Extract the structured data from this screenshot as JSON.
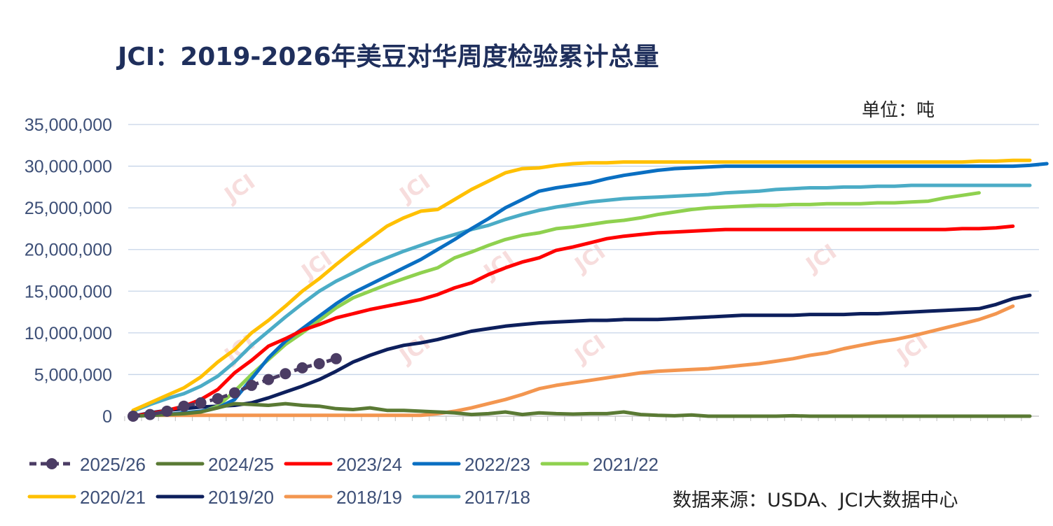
{
  "title": "JCI：2019-2026年美豆对华周度检验累计总量",
  "unit": "单位：吨",
  "source": "数据来源：USDA、JCI大数据中心",
  "watermark": "JCI",
  "chart_data": {
    "type": "line",
    "ylim": [
      0,
      35000000
    ],
    "yticks": [
      0,
      5000000,
      10000000,
      15000000,
      20000000,
      25000000,
      30000000,
      35000000
    ],
    "ytick_labels": [
      "0",
      "5,000,000",
      "10,000,000",
      "15,000,000",
      "20,000,000",
      "25,000,000",
      "30,000,000",
      "35,000,000"
    ],
    "week_count": 54,
    "grid": true,
    "legend_position": "bottom",
    "series": [
      {
        "name": "2025/26",
        "color": "#4b3c64",
        "style": "dash-marker",
        "values": [
          0,
          200000,
          600000,
          1200000,
          1600000,
          2100000,
          2800000,
          3700000,
          4400000,
          5100000,
          5800000,
          6300000,
          6900000
        ]
      },
      {
        "name": "2024/25",
        "color": "#5a7a34",
        "style": "solid",
        "values": [
          0,
          100000,
          200000,
          300000,
          500000,
          1000000,
          1500000,
          1400000,
          1300000,
          1500000,
          1300000,
          1200000,
          900000,
          800000,
          1000000,
          700000,
          700000,
          600000,
          500000,
          400000,
          200000,
          300000,
          500000,
          200000,
          400000,
          300000,
          250000,
          300000,
          300000,
          500000,
          200000,
          100000,
          50000,
          150000,
          0,
          0,
          0,
          0,
          0,
          50000,
          0,
          0,
          0,
          0,
          0,
          0,
          0,
          0,
          0,
          0,
          0,
          0,
          0,
          0
        ]
      },
      {
        "name": "2023/24",
        "color": "#ff0000",
        "style": "solid",
        "values": [
          0,
          300000,
          700000,
          1200000,
          2000000,
          3200000,
          5200000,
          6700000,
          8400000,
          9300000,
          10300000,
          11000000,
          11800000,
          12300000,
          12800000,
          13200000,
          13600000,
          14000000,
          14600000,
          15400000,
          16000000,
          17000000,
          17800000,
          18500000,
          19000000,
          19900000,
          20300000,
          20800000,
          21300000,
          21600000,
          21800000,
          22000000,
          22100000,
          22200000,
          22300000,
          22400000,
          22400000,
          22400000,
          22400000,
          22400000,
          22400000,
          22400000,
          22400000,
          22400000,
          22400000,
          22400000,
          22400000,
          22400000,
          22400000,
          22500000,
          22500000,
          22600000,
          22800000
        ]
      },
      {
        "name": "2022/23",
        "color": "#0a6fc2",
        "style": "solid",
        "values": [
          0,
          100000,
          200000,
          400000,
          600000,
          1000000,
          2000000,
          4500000,
          7000000,
          9000000,
          10500000,
          12000000,
          13500000,
          14800000,
          15800000,
          16800000,
          17800000,
          18800000,
          20000000,
          21200000,
          22500000,
          23700000,
          25000000,
          26000000,
          27000000,
          27400000,
          27700000,
          28000000,
          28500000,
          28900000,
          29200000,
          29500000,
          29700000,
          29800000,
          29900000,
          30000000,
          30000000,
          30000000,
          30000000,
          30000000,
          30000000,
          30000000,
          30000000,
          30000000,
          30000000,
          30000000,
          30000000,
          30000000,
          30000000,
          30000000,
          30000000,
          30000000,
          30000000,
          30100000,
          30300000
        ]
      },
      {
        "name": "2021/22",
        "color": "#8fd14f",
        "style": "solid",
        "values": [
          0,
          100000,
          200000,
          300000,
          500000,
          1200000,
          3000000,
          5000000,
          6800000,
          8600000,
          10000000,
          11500000,
          13000000,
          14200000,
          15000000,
          15800000,
          16500000,
          17200000,
          17800000,
          19000000,
          19700000,
          20500000,
          21200000,
          21700000,
          22000000,
          22500000,
          22700000,
          23000000,
          23300000,
          23500000,
          23800000,
          24200000,
          24500000,
          24800000,
          25000000,
          25100000,
          25200000,
          25300000,
          25300000,
          25400000,
          25400000,
          25500000,
          25500000,
          25500000,
          25600000,
          25600000,
          25700000,
          25800000,
          26200000,
          26500000,
          26800000
        ]
      },
      {
        "name": "2020/21",
        "color": "#ffc000",
        "style": "solid",
        "values": [
          700000,
          1600000,
          2500000,
          3400000,
          4700000,
          6500000,
          8000000,
          10000000,
          11500000,
          13200000,
          15000000,
          16500000,
          18200000,
          19800000,
          21300000,
          22800000,
          23800000,
          24600000,
          24800000,
          26000000,
          27200000,
          28200000,
          29200000,
          29700000,
          29800000,
          30100000,
          30300000,
          30400000,
          30400000,
          30500000,
          30500000,
          30500000,
          30500000,
          30500000,
          30500000,
          30500000,
          30500000,
          30500000,
          30500000,
          30500000,
          30500000,
          30500000,
          30500000,
          30500000,
          30500000,
          30500000,
          30500000,
          30500000,
          30500000,
          30500000,
          30600000,
          30600000,
          30700000,
          30700000
        ]
      },
      {
        "name": "2019/20",
        "color": "#0d1f5c",
        "style": "solid",
        "values": [
          0,
          400000,
          700000,
          900000,
          1100000,
          1200000,
          1300000,
          1600000,
          2200000,
          2900000,
          3600000,
          4400000,
          5400000,
          6500000,
          7300000,
          8000000,
          8500000,
          8800000,
          9200000,
          9700000,
          10200000,
          10500000,
          10800000,
          11000000,
          11200000,
          11300000,
          11400000,
          11500000,
          11500000,
          11600000,
          11600000,
          11600000,
          11700000,
          11800000,
          11900000,
          12000000,
          12100000,
          12100000,
          12100000,
          12100000,
          12200000,
          12200000,
          12200000,
          12300000,
          12300000,
          12400000,
          12500000,
          12600000,
          12700000,
          12800000,
          12900000,
          13400000,
          14100000,
          14500000
        ]
      },
      {
        "name": "2018/19",
        "color": "#f39650",
        "style": "solid",
        "values": [
          100000,
          100000,
          100000,
          100000,
          100000,
          100000,
          100000,
          100000,
          100000,
          100000,
          100000,
          100000,
          100000,
          100000,
          100000,
          100000,
          100000,
          100000,
          300000,
          600000,
          1000000,
          1500000,
          2000000,
          2600000,
          3300000,
          3700000,
          4000000,
          4300000,
          4600000,
          4900000,
          5200000,
          5400000,
          5500000,
          5600000,
          5700000,
          5900000,
          6100000,
          6300000,
          6600000,
          6900000,
          7300000,
          7600000,
          8100000,
          8500000,
          8900000,
          9200000,
          9600000,
          10100000,
          10600000,
          11100000,
          11600000,
          12300000,
          13200000
        ]
      },
      {
        "name": "2017/18",
        "color": "#4bacc6",
        "style": "solid",
        "values": [
          600000,
          1400000,
          2100000,
          2700000,
          3600000,
          4800000,
          6500000,
          8500000,
          10200000,
          11900000,
          13500000,
          15000000,
          16200000,
          17200000,
          18200000,
          19000000,
          19800000,
          20500000,
          21200000,
          21800000,
          22400000,
          22900000,
          23600000,
          24200000,
          24700000,
          25100000,
          25400000,
          25700000,
          25900000,
          26100000,
          26200000,
          26300000,
          26400000,
          26500000,
          26600000,
          26800000,
          26900000,
          27000000,
          27200000,
          27300000,
          27400000,
          27400000,
          27500000,
          27500000,
          27600000,
          27600000,
          27700000,
          27700000,
          27700000,
          27700000,
          27700000,
          27700000,
          27700000,
          27700000
        ]
      }
    ]
  }
}
